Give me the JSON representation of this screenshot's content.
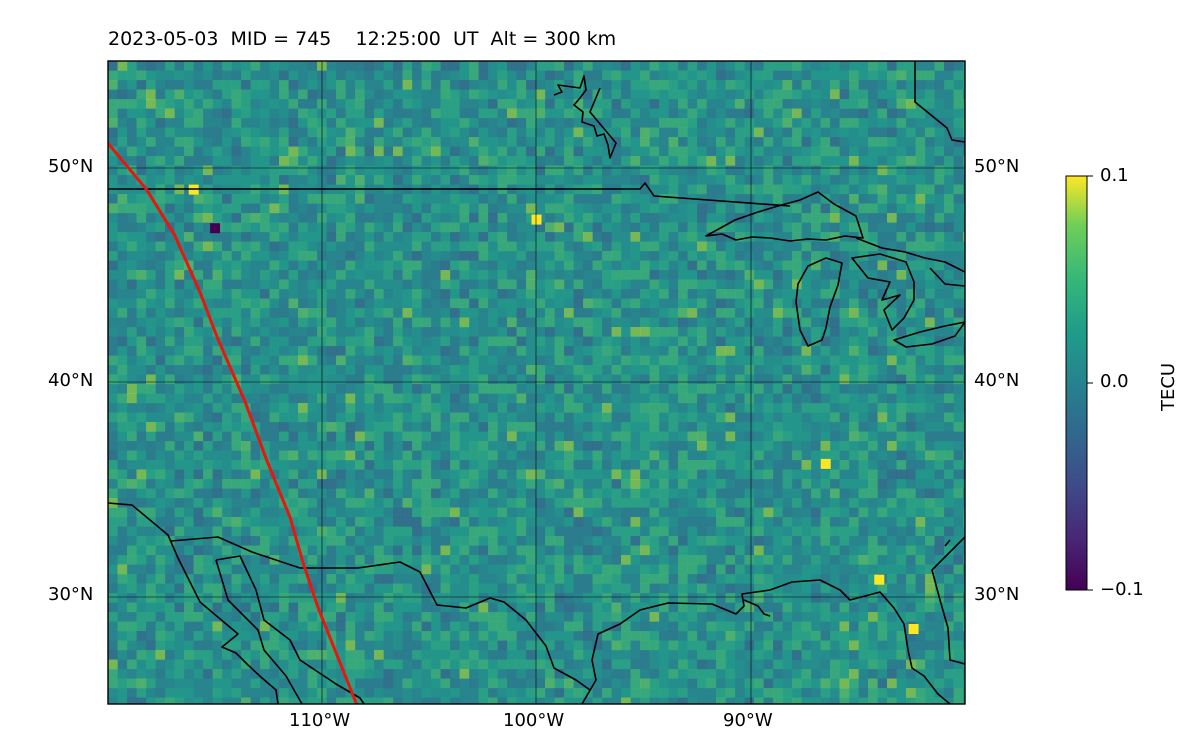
{
  "title": "2023-05-03  MID = 745    12:25:00  UT  Alt = 300 km",
  "map": {
    "lon_range": [
      -120,
      -80
    ],
    "lat_range": [
      25,
      55
    ],
    "lon_ticks": [
      {
        "value": -110,
        "label": "110°W"
      },
      {
        "value": -100,
        "label": "100°W"
      },
      {
        "value": -90,
        "label": "90°W"
      }
    ],
    "lat_ticks": [
      {
        "value": 50,
        "label": "50°N"
      },
      {
        "value": 40,
        "label": "40°N"
      },
      {
        "value": 30,
        "label": "30°N"
      }
    ],
    "track_color": "#e8160f",
    "track": [
      [
        -120.7,
        52.0
      ],
      [
        -118.2,
        49.0
      ],
      [
        -116.9,
        46.9
      ],
      [
        -115.7,
        44.2
      ],
      [
        -114.9,
        42.1
      ],
      [
        -113.6,
        39.1
      ],
      [
        -112.6,
        36.4
      ],
      [
        -111.5,
        33.7
      ],
      [
        -110.9,
        31.6
      ],
      [
        -110.2,
        29.5
      ],
      [
        -108.4,
        25.0
      ]
    ]
  },
  "colorbar": {
    "label": "TECU",
    "range": [
      -0.1,
      0.1
    ],
    "colormap": "viridis",
    "ticks": [
      {
        "value": 0.1,
        "label": "0.1"
      },
      {
        "value": 0.0,
        "label": "0.0"
      },
      {
        "value": -0.1,
        "label": "−0.1"
      }
    ]
  }
}
